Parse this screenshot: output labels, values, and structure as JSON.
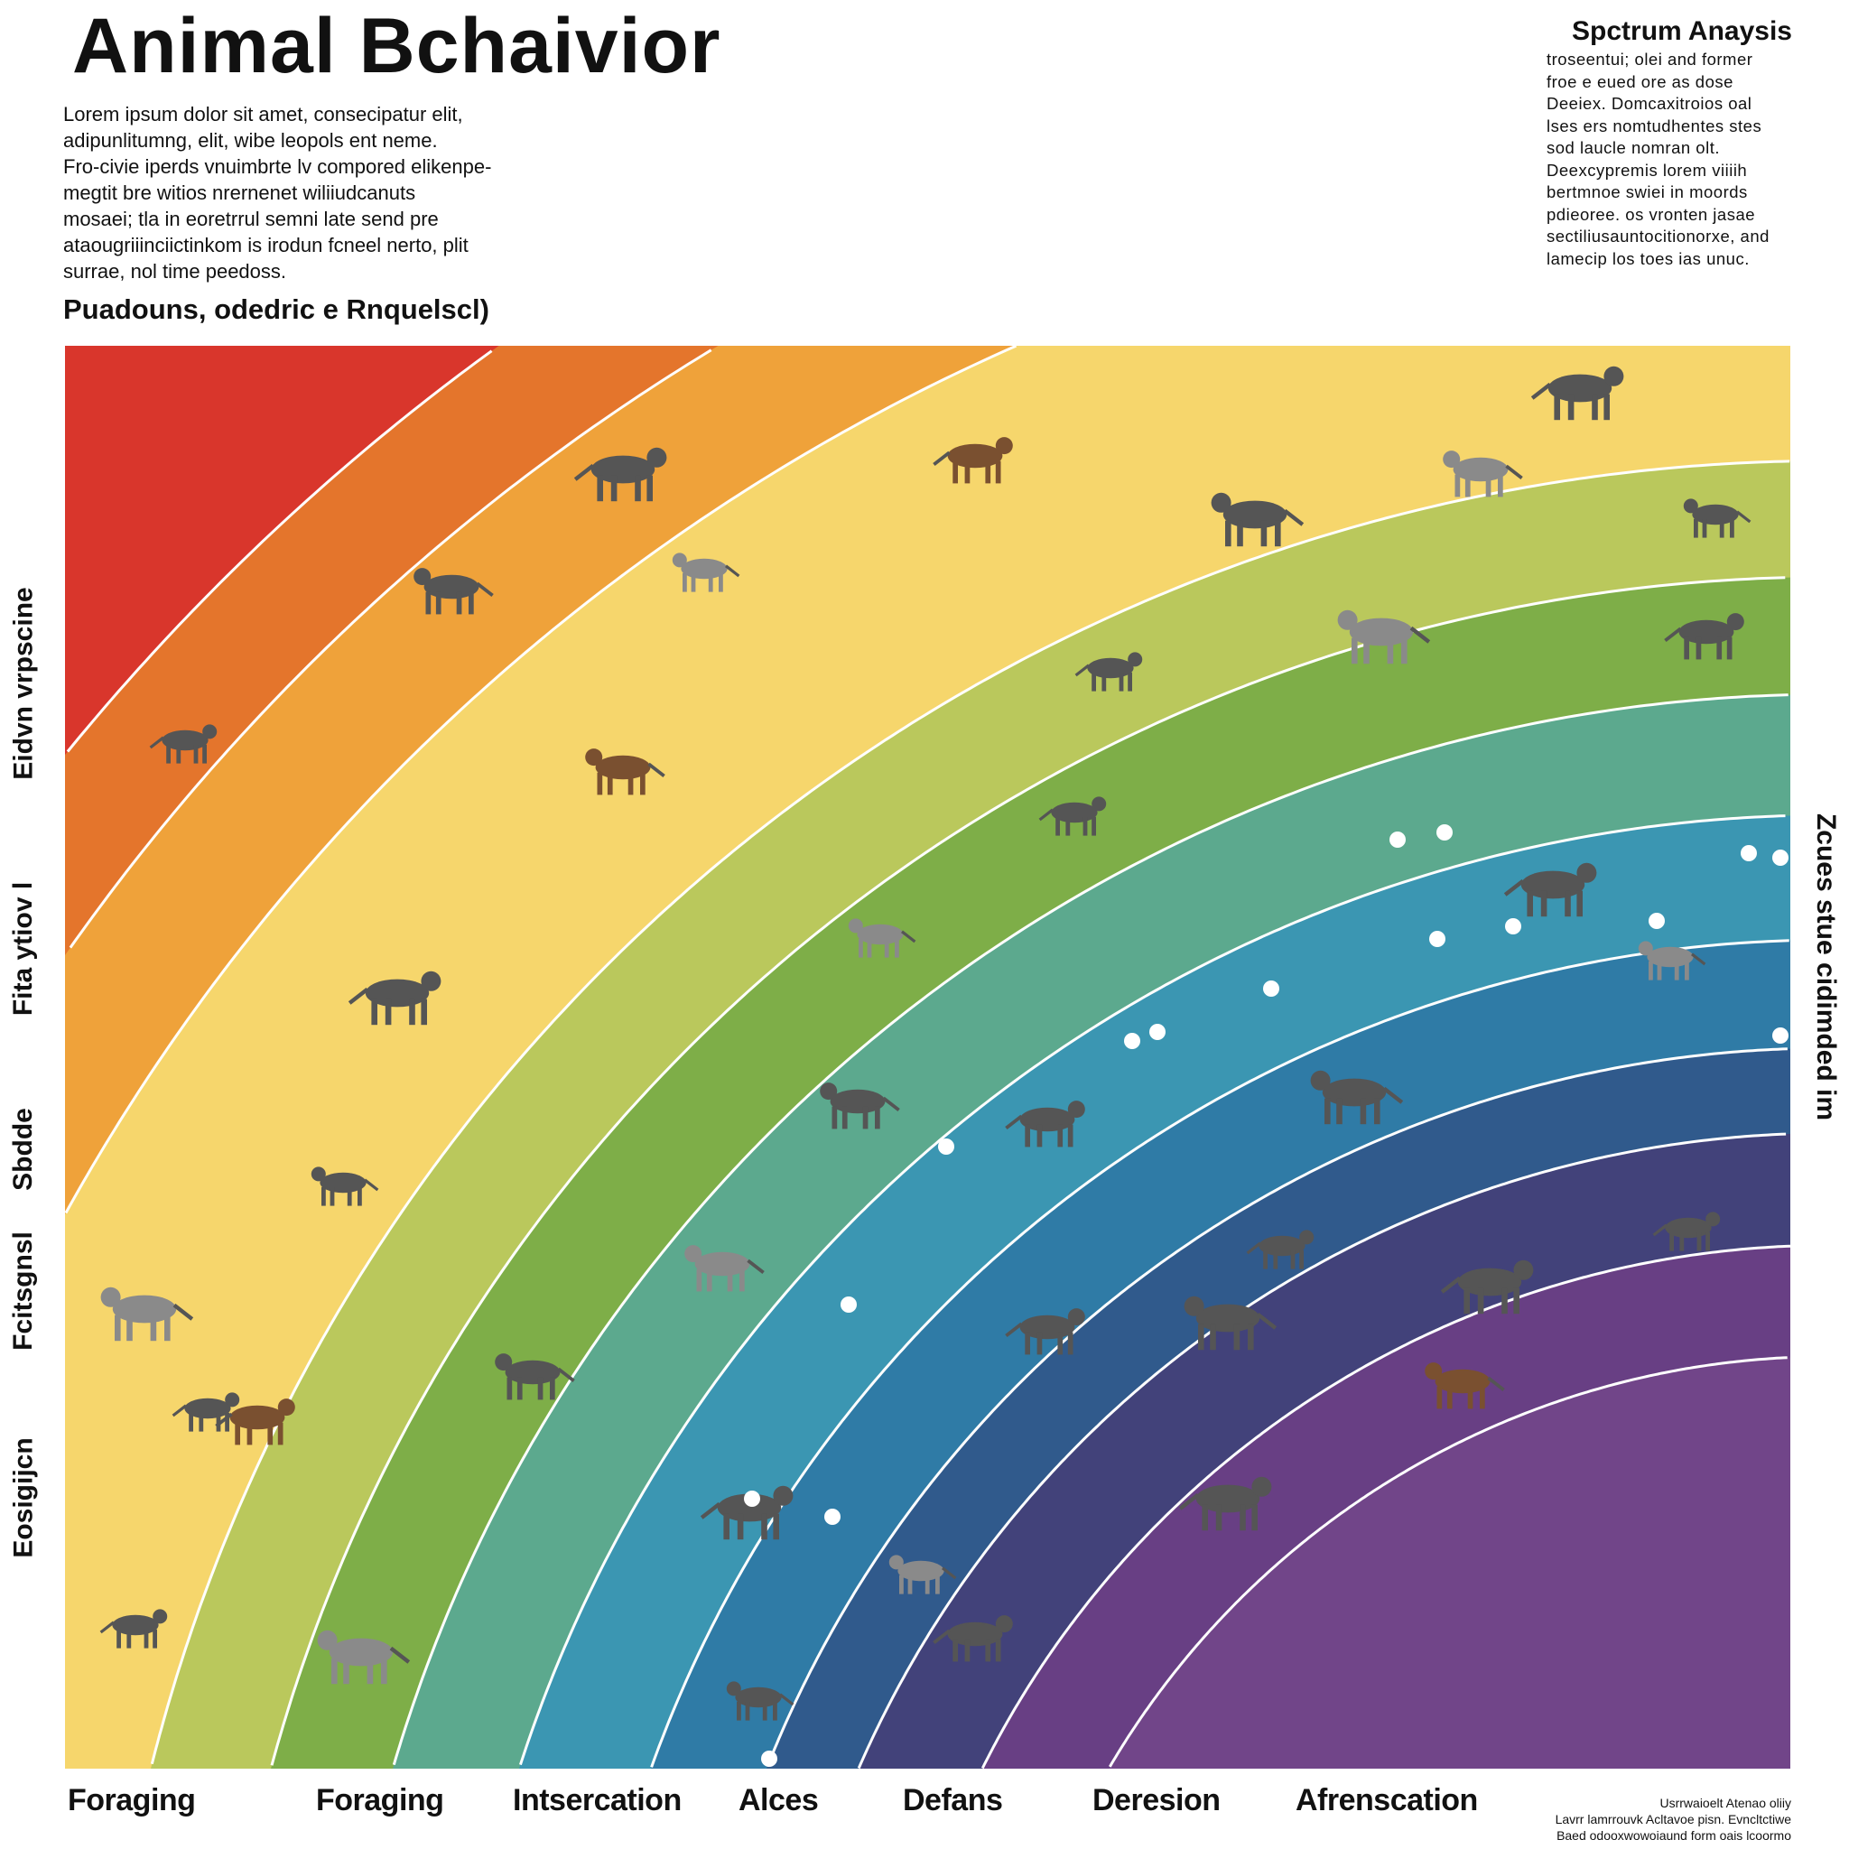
{
  "header": {
    "title": "Animal Bchaivior",
    "intro": [
      "Lorem ipsum dolor sit amet, consecipatur elit,",
      "adipunlitumng, elit, wibe leopols ent neme.",
      "Fro-civie iperds vnuimbrte lv compored elikenpe-",
      "megtit bre witios nrernenet wiliiudcanuts",
      "mosaei; tla in eoretrrul semni late send pre",
      "ataougriiinciictinkom is irodun fcneel nerto, plit",
      "surrae, nol time peedoss."
    ],
    "subtitle": "Puadouns, odedric e Rnquelscl)"
  },
  "side_panel": {
    "title": "Spctrum Anaysis",
    "body": [
      "troseentui; olei and former",
      "froe e eued ore as dose",
      "Deeiex. Domcaxitroios oal",
      "lses ers nomtudhentes stes",
      "sod laucle nomran olt.",
      "Deexcypremis lorem viiiih",
      "bertmnoe swiei in moords",
      "pdieoree. os vronten jasae",
      "sectiliusauntocitionorxe, and",
      "lamecip los toes ias unuc."
    ]
  },
  "chart_data": {
    "type": "area",
    "style": "concentric rainbow arcs with animal silhouettes",
    "x_categories": [
      "Foraging",
      "Foraging",
      "Intsercation",
      "Alces",
      "Defans",
      "Deresion",
      "Afrenscation"
    ],
    "y_categories": [
      "Eidvn vrpscine",
      "Fita ytiov l",
      "Sbdde",
      "Fcitsgnsl",
      "Eosigijcn"
    ],
    "right_label": "Zcues stue cidimded im",
    "band_colors": [
      "#d9362c",
      "#e4752c",
      "#efa23a",
      "#f6d66c",
      "#bac85c",
      "#7eae48",
      "#5ca98e",
      "#3b96b2",
      "#2f7ba6",
      "#305a8c",
      "#42427a",
      "#683f84",
      "#714589"
    ],
    "grid": false,
    "legend": "none"
  },
  "footnote": [
    "Usrrwaioelt Atenao oliiy",
    "Lavrr lamrrouvk Acltavoe pisn. Evncltctiwe",
    "Baed odooxwowoiaund form oais lcoormo"
  ]
}
